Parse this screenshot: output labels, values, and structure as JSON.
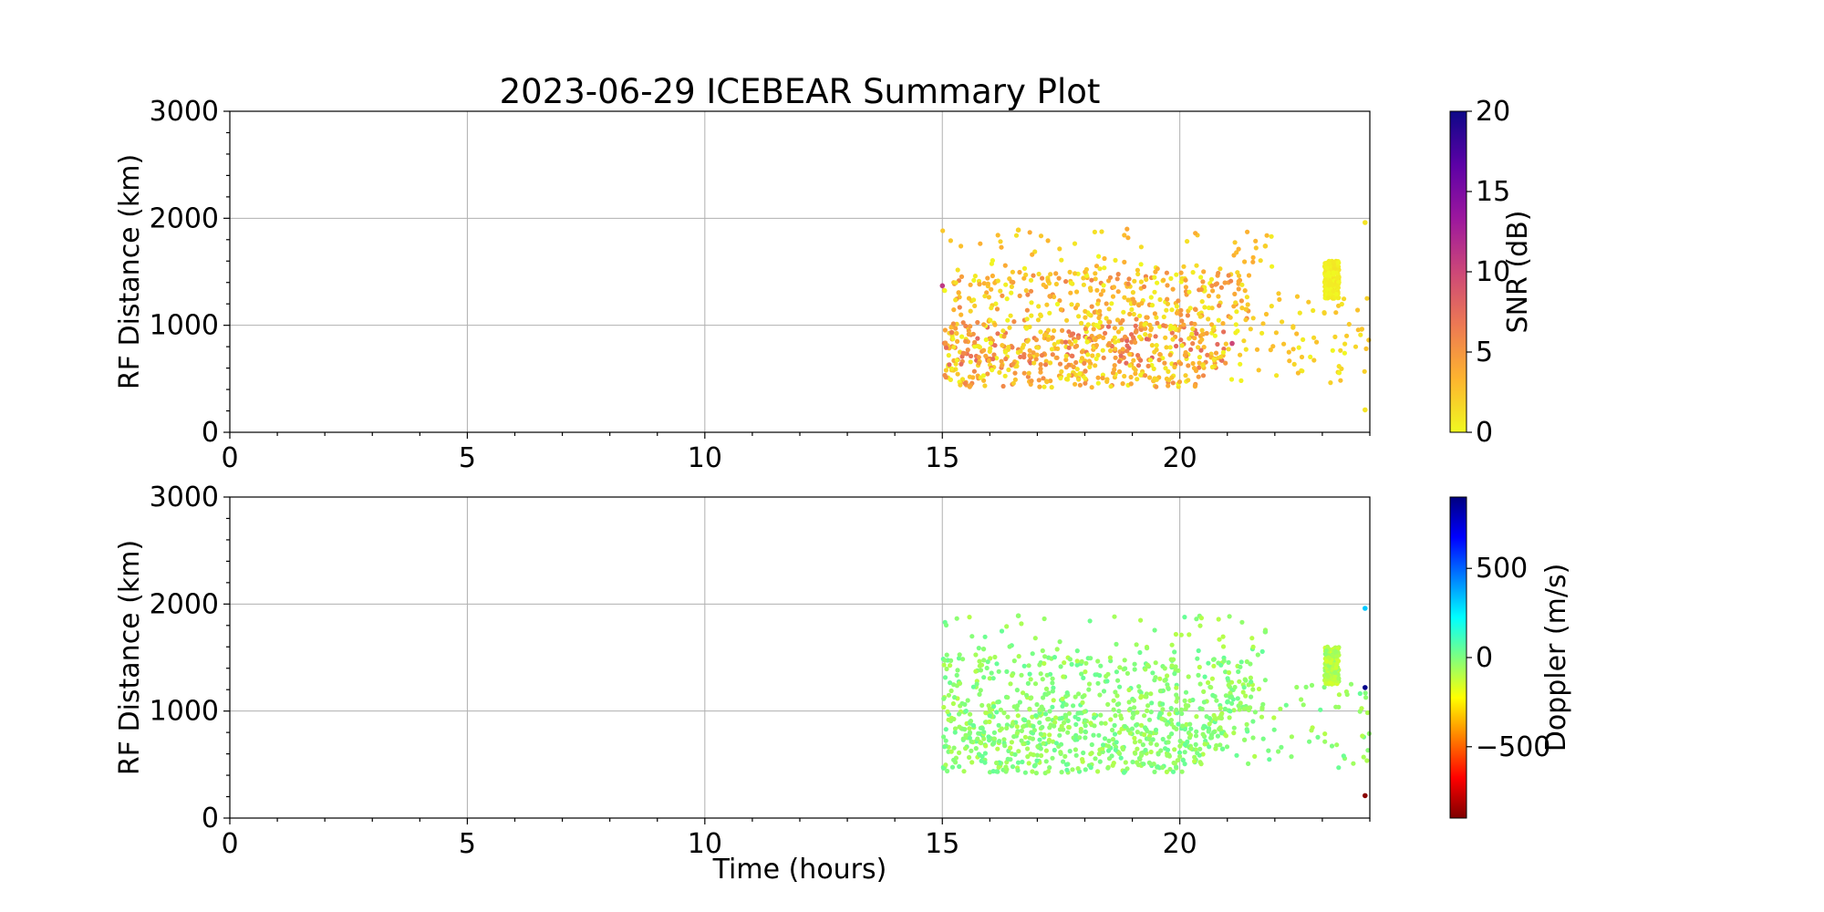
{
  "figure": {
    "title": "2023-06-29 ICEBEAR Summary Plot"
  },
  "chart_data": [
    {
      "type": "scatter",
      "panel": "top",
      "title": "2023-06-29 ICEBEAR Summary Plot",
      "xlabel": "",
      "ylabel": "RF Distance (km)",
      "xlim": [
        0,
        24
      ],
      "ylim": [
        0,
        3000
      ],
      "xticks": [
        0,
        5,
        10,
        15,
        20
      ],
      "yticks": [
        0,
        1000,
        2000,
        3000
      ],
      "grid": true,
      "color_variable": "SNR (dB)",
      "colorbar": {
        "label": "SNR (dB)",
        "range": [
          0,
          20
        ],
        "ticks": [
          0,
          5,
          10,
          15,
          20
        ],
        "colormap": "plasma_r",
        "colors": [
          "#f0f921",
          "#fdb42f",
          "#ed7953",
          "#cc4778",
          "#9c179e",
          "#5c01a6",
          "#0d0887"
        ]
      },
      "point_size_note": "small markers",
      "clusters": [
        {
          "x_range": [
            15.0,
            21.0
          ],
          "y_range": [
            600,
            1000
          ],
          "snr_range": [
            0,
            8
          ],
          "count": 420
        },
        {
          "x_range": [
            15.0,
            21.5
          ],
          "y_range": [
            1000,
            1500
          ],
          "snr_range": [
            0,
            6
          ],
          "count": 320
        },
        {
          "x_range": [
            15.0,
            20.5
          ],
          "y_range": [
            420,
            600
          ],
          "snr_range": [
            0,
            6
          ],
          "count": 140
        },
        {
          "x_range": [
            15.0,
            22.0
          ],
          "y_range": [
            1500,
            1900
          ],
          "snr_range": [
            0,
            4
          ],
          "count": 60
        },
        {
          "x_range": [
            21.0,
            24.0
          ],
          "y_range": [
            450,
            1300
          ],
          "snr_range": [
            0,
            3
          ],
          "count": 80
        },
        {
          "x_range": [
            23.05,
            23.35
          ],
          "y_range": [
            1250,
            1600
          ],
          "snr_range": [
            0,
            1
          ],
          "count": 220
        }
      ],
      "points": [
        {
          "x": 23.9,
          "y": 1960,
          "snr": 1
        },
        {
          "x": 23.9,
          "y": 210,
          "snr": 1
        },
        {
          "x": 16.6,
          "y": 1890,
          "snr": 2
        },
        {
          "x": 21.8,
          "y": 1740,
          "snr": 2
        },
        {
          "x": 21.1,
          "y": 830,
          "snr": 10
        },
        {
          "x": 15.0,
          "y": 1370,
          "snr": 11
        }
      ]
    },
    {
      "type": "scatter",
      "panel": "bottom",
      "title": "",
      "xlabel": "Time (hours)",
      "ylabel": "RF Distance (km)",
      "xlim": [
        0,
        24
      ],
      "ylim": [
        0,
        3000
      ],
      "xticks": [
        0,
        5,
        10,
        15,
        20
      ],
      "yticks": [
        0,
        1000,
        2000,
        3000
      ],
      "grid": true,
      "color_variable": "Doppler (m/s)",
      "colorbar": {
        "label": "Doppler (m/s)",
        "range": [
          -900,
          900
        ],
        "ticks": [
          -500,
          0,
          500
        ],
        "tick_labels": [
          "−500",
          "0",
          "500"
        ],
        "colormap": "jet_r",
        "colors": [
          "#7f0000",
          "#ff0000",
          "#ff7f00",
          "#ffff00",
          "#7fff7f",
          "#00ffff",
          "#007fff",
          "#0000ff",
          "#00007f"
        ]
      },
      "clusters": [
        {
          "x_range": [
            15.0,
            21.0
          ],
          "y_range": [
            600,
            1000
          ],
          "doppler_range": [
            -100,
            50
          ],
          "count": 420
        },
        {
          "x_range": [
            15.0,
            21.5
          ],
          "y_range": [
            1000,
            1500
          ],
          "doppler_range": [
            -100,
            50
          ],
          "count": 320
        },
        {
          "x_range": [
            15.0,
            20.5
          ],
          "y_range": [
            420,
            600
          ],
          "doppler_range": [
            -100,
            50
          ],
          "count": 140
        },
        {
          "x_range": [
            15.0,
            22.0
          ],
          "y_range": [
            1500,
            1900
          ],
          "doppler_range": [
            -100,
            50
          ],
          "count": 60
        },
        {
          "x_range": [
            21.0,
            24.0
          ],
          "y_range": [
            450,
            1300
          ],
          "doppler_range": [
            -100,
            50
          ],
          "count": 80
        },
        {
          "x_range": [
            23.05,
            23.35
          ],
          "y_range": [
            1250,
            1600
          ],
          "doppler_range": [
            -150,
            -20
          ],
          "count": 220
        }
      ],
      "points": [
        {
          "x": 23.9,
          "y": 1960,
          "doppler": 320
        },
        {
          "x": 23.9,
          "y": 1220,
          "doppler": 880
        },
        {
          "x": 23.9,
          "y": 210,
          "doppler": -880
        },
        {
          "x": 16.6,
          "y": 1890,
          "doppler": -30
        },
        {
          "x": 21.8,
          "y": 1740,
          "doppler": -20
        }
      ]
    }
  ]
}
